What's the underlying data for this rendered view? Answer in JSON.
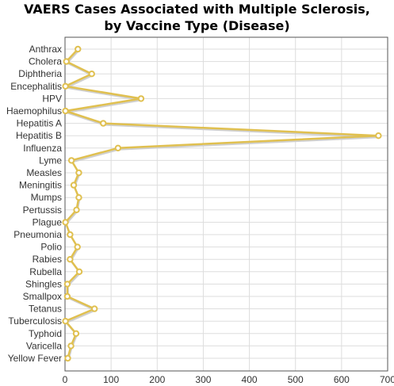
{
  "chart_data": {
    "type": "line",
    "title_line1": "VAERS Cases Associated with Multiple Sclerosis,",
    "title_line2": "by Vaccine Type (Disease)",
    "xlabel": "",
    "ylabel": "",
    "orientation": "horizontal",
    "categories": [
      "Anthrax",
      "Cholera",
      "Diphtheria",
      "Encephalitis",
      "HPV",
      "Haemophilus",
      "Hepatitis A",
      "Hepatitis B",
      "Influenza",
      "Lyme",
      "Measles",
      "Meningitis",
      "Mumps",
      "Pertussis",
      "Plague",
      "Pneumonia",
      "Polio",
      "Rabies",
      "Rubella",
      "Shingles",
      "Smallpox",
      "Tetanus",
      "Tuberculosis",
      "Typhoid",
      "Varicella",
      "Yellow Fever"
    ],
    "values": [
      28,
      3,
      58,
      1,
      165,
      1,
      83,
      680,
      115,
      14,
      30,
      19,
      30,
      25,
      1,
      11,
      27,
      11,
      31,
      5,
      5,
      64,
      1,
      24,
      13,
      6
    ],
    "xlim": [
      0,
      700
    ],
    "xticks": [
      "0",
      "100",
      "200",
      "300",
      "400",
      "500",
      "600",
      "700"
    ],
    "grid": true,
    "legend": "none",
    "colors": {
      "line": "#e0c050",
      "marker_fill": "#ffffff",
      "grid": "#dddddd",
      "axis": "#555555"
    }
  }
}
